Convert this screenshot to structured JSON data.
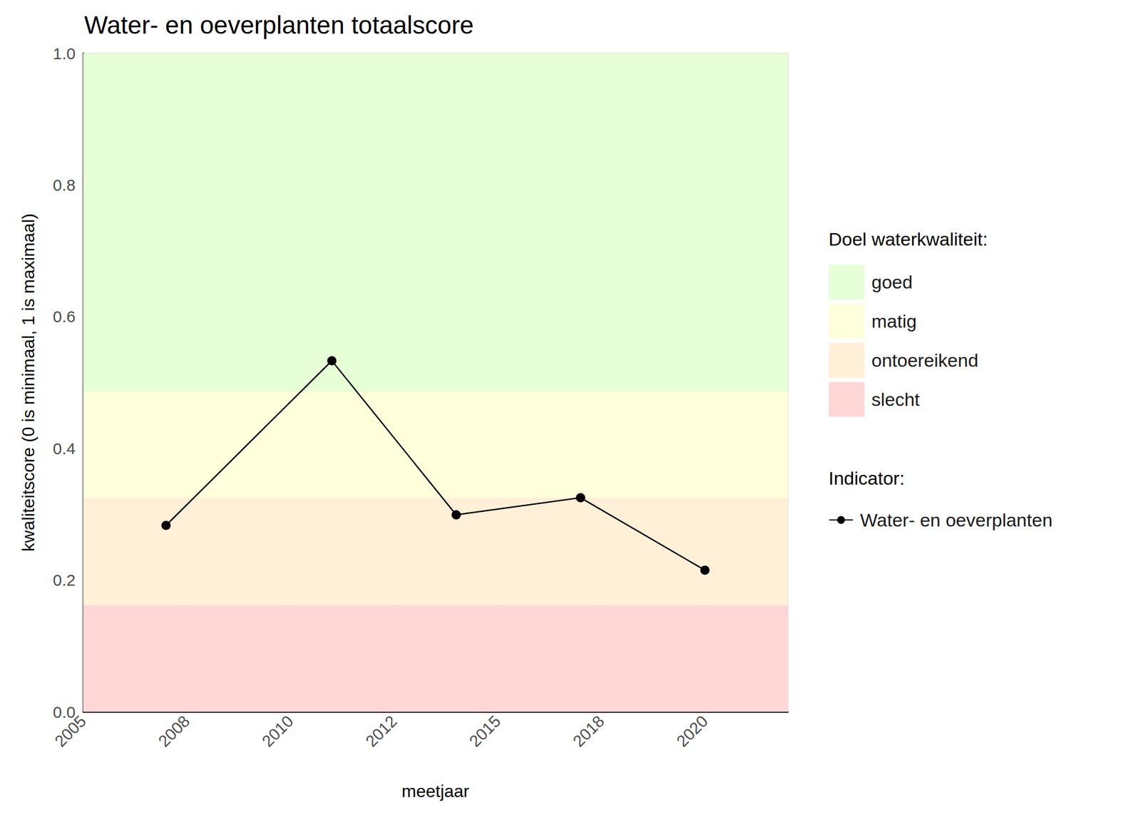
{
  "chart_data": {
    "type": "line",
    "title": "Water- en oeverplanten totaalscore",
    "x_label": "meetjaar",
    "y_label": "kwaliteitscore (0 is minimaal, 1 is maximaal)",
    "x": [
      2007,
      2011,
      2014,
      2017,
      2020
    ],
    "series": [
      {
        "name": "Water- en oeverplanten",
        "color": "#000000",
        "marker": "circle",
        "line_style": "solid",
        "values": [
          0.283,
          0.533,
          0.299,
          0.325,
          0.215
        ]
      }
    ],
    "xlim": [
      2005,
      2022
    ],
    "xticks": [
      2005,
      {
        "value": 2007.5,
        "label": "2008"
      },
      2010,
      {
        "value": 2012.5,
        "label": "2012"
      },
      2015,
      {
        "value": 2017.5,
        "label": "2018"
      },
      2020
    ],
    "ylim": [
      0,
      1
    ],
    "yticks": [
      {
        "value": 0,
        "label": "0.0"
      },
      0.2,
      0.4,
      0.6,
      0.8,
      {
        "value": 1,
        "label": "1.0"
      }
    ],
    "grid": true,
    "legend": "right",
    "band_legend_title": "Doel waterkwaliteit:",
    "series_legend_title": "Indicator:",
    "bands": [
      {
        "name": "goed",
        "from": 0.486,
        "to": 1,
        "color": "#e6ffd6"
      },
      {
        "name": "matig",
        "from": 0.325,
        "to": 0.486,
        "color": "#ffffdc"
      },
      {
        "name": "ontoereikend",
        "from": 0.162,
        "to": 0.325,
        "color": "#fff0d7"
      },
      {
        "name": "slecht",
        "from": 0,
        "to": 0.162,
        "color": "#ffd7d7"
      }
    ]
  }
}
